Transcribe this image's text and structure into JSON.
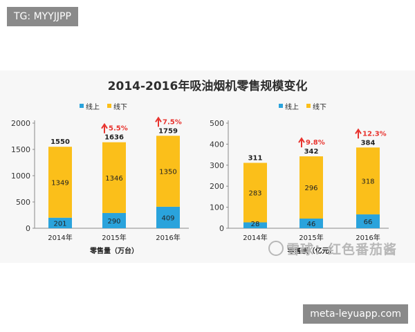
{
  "overlay": {
    "top_left_tag": "TG: MYYJJPP",
    "bottom_right_tag": "meta-leyuapp.com",
    "watermark": "雪球：红色番茄酱"
  },
  "title": "2014-2016年吸油烟机零售规模变化",
  "colors": {
    "online": "#2aa3dc",
    "offline": "#fbbf1a",
    "growth": "#e8332e",
    "axis": "#888888"
  },
  "chart_data": [
    {
      "type": "bar",
      "stacked": true,
      "categories": [
        "2014年",
        "2015年",
        "2016年"
      ],
      "legend": [
        "线上",
        "线下"
      ],
      "series": [
        {
          "name": "线上",
          "values": [
            201,
            290,
            409
          ]
        },
        {
          "name": "线下",
          "values": [
            1349,
            1346,
            1350
          ]
        }
      ],
      "totals": [
        1550,
        1636,
        1759
      ],
      "growth": [
        "",
        "5.5%",
        "7.5%"
      ],
      "yticks": [
        0,
        500,
        1000,
        1500,
        2000
      ],
      "ylim": [
        0,
        2000
      ],
      "xlabel": "零售量（万台）"
    },
    {
      "type": "bar",
      "stacked": true,
      "categories": [
        "2014年",
        "2015年",
        "2016年"
      ],
      "legend": [
        "线上",
        "线下"
      ],
      "series": [
        {
          "name": "线上",
          "values": [
            28,
            46,
            66
          ]
        },
        {
          "name": "线下",
          "values": [
            283,
            296,
            318
          ]
        }
      ],
      "totals": [
        311,
        342,
        384
      ],
      "growth": [
        "",
        "9.8%",
        "12.3%"
      ],
      "yticks": [
        0,
        100,
        200,
        300,
        400,
        500
      ],
      "ylim": [
        0,
        500
      ],
      "xlabel": "零售额（亿元）"
    }
  ]
}
